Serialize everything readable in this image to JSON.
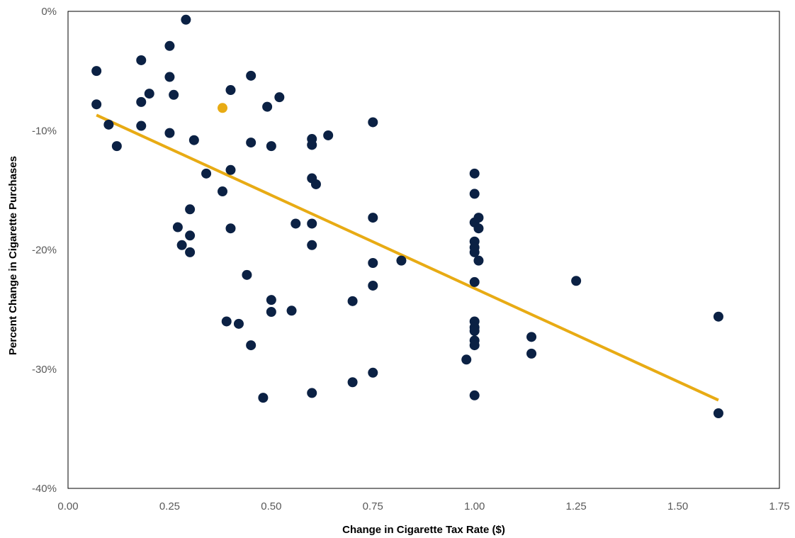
{
  "chart_data": {
    "type": "scatter",
    "title": "",
    "xlabel": "Change in Cigarette Tax Rate ($)",
    "ylabel": "Percent Change in Cigarette Purchases",
    "xlim": [
      0,
      1.75
    ],
    "ylim": [
      -40,
      0
    ],
    "x_ticks": [
      0,
      0.25,
      0.5,
      0.75,
      1.0,
      1.25,
      1.5,
      1.75
    ],
    "x_tick_labels": [
      "0.00",
      "0.25",
      "0.50",
      "0.75",
      "1.00",
      "1.25",
      "1.50",
      "1.75"
    ],
    "y_ticks": [
      0,
      -10,
      -20,
      -30,
      -40
    ],
    "y_tick_labels": [
      "0%",
      "-10%",
      "-20%",
      "-30%",
      "-40%"
    ],
    "grid": false,
    "colors": {
      "points": "#0b2144",
      "highlight": "#e8ab14",
      "trendline": "#e8ab14",
      "frame": "#000000"
    },
    "series": [
      {
        "points": [
          [
            0.07,
            -5.0
          ],
          [
            0.07,
            -7.8
          ],
          [
            0.1,
            -9.5
          ],
          [
            0.12,
            -11.3
          ],
          [
            0.18,
            -4.1
          ],
          [
            0.18,
            -7.6
          ],
          [
            0.2,
            -6.9
          ],
          [
            0.18,
            -9.6
          ],
          [
            0.25,
            -2.9
          ],
          [
            0.25,
            -5.5
          ],
          [
            0.26,
            -7.0
          ],
          [
            0.25,
            -10.2
          ],
          [
            0.29,
            -0.7
          ],
          [
            0.31,
            -10.8
          ],
          [
            0.34,
            -13.6
          ],
          [
            0.3,
            -16.6
          ],
          [
            0.27,
            -18.1
          ],
          [
            0.3,
            -18.8
          ],
          [
            0.28,
            -19.6
          ],
          [
            0.3,
            -20.2
          ],
          [
            0.38,
            -15.1
          ],
          [
            0.4,
            -13.3
          ],
          [
            0.4,
            -18.2
          ],
          [
            0.4,
            -6.6
          ],
          [
            0.45,
            -5.4
          ],
          [
            0.45,
            -11.0
          ],
          [
            0.49,
            -8.0
          ],
          [
            0.5,
            -11.3
          ],
          [
            0.52,
            -7.2
          ],
          [
            0.44,
            -22.1
          ],
          [
            0.39,
            -26.0
          ],
          [
            0.42,
            -26.2
          ],
          [
            0.45,
            -28.0
          ],
          [
            0.48,
            -32.4
          ],
          [
            0.5,
            -24.2
          ],
          [
            0.5,
            -25.2
          ],
          [
            0.55,
            -25.1
          ],
          [
            0.56,
            -17.8
          ],
          [
            0.6,
            -10.7
          ],
          [
            0.6,
            -11.2
          ],
          [
            0.6,
            -14.0
          ],
          [
            0.61,
            -14.5
          ],
          [
            0.64,
            -10.4
          ],
          [
            0.6,
            -17.8
          ],
          [
            0.6,
            -19.6
          ],
          [
            0.6,
            -32.0
          ],
          [
            0.7,
            -24.3
          ],
          [
            0.7,
            -31.1
          ],
          [
            0.75,
            -9.3
          ],
          [
            0.75,
            -17.3
          ],
          [
            0.75,
            -21.1
          ],
          [
            0.75,
            -23.0
          ],
          [
            0.75,
            -30.3
          ],
          [
            0.82,
            -20.9
          ],
          [
            0.98,
            -29.2
          ],
          [
            1.0,
            -13.6
          ],
          [
            1.0,
            -15.3
          ],
          [
            1.0,
            -17.7
          ],
          [
            1.01,
            -17.3
          ],
          [
            1.01,
            -18.2
          ],
          [
            1.0,
            -19.3
          ],
          [
            1.0,
            -19.8
          ],
          [
            1.0,
            -20.2
          ],
          [
            1.01,
            -20.9
          ],
          [
            1.0,
            -22.7
          ],
          [
            1.0,
            -26.0
          ],
          [
            1.0,
            -26.5
          ],
          [
            1.0,
            -26.8
          ],
          [
            1.0,
            -27.6
          ],
          [
            1.0,
            -28.0
          ],
          [
            1.0,
            -32.2
          ],
          [
            1.14,
            -27.3
          ],
          [
            1.14,
            -28.7
          ],
          [
            1.25,
            -22.6
          ],
          [
            1.6,
            -25.6
          ],
          [
            1.6,
            -33.7
          ]
        ]
      },
      {
        "highlight": true,
        "points": [
          [
            0.38,
            -8.1
          ]
        ]
      }
    ],
    "trendline": {
      "x": [
        0.07,
        1.6
      ],
      "y": [
        -8.7,
        -32.6
      ]
    }
  }
}
